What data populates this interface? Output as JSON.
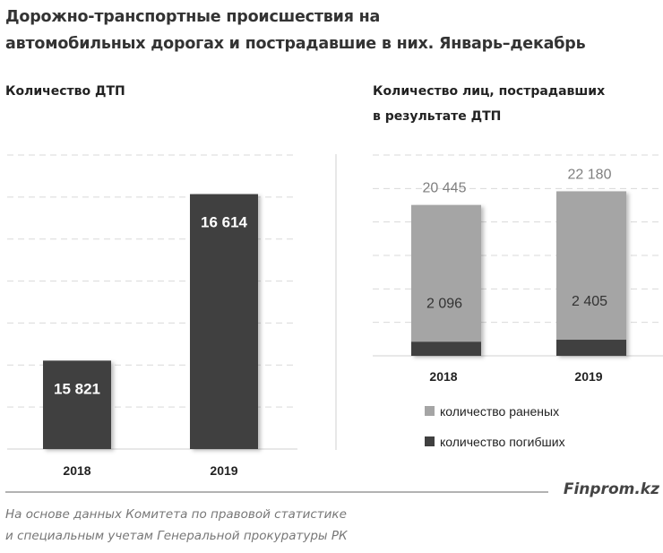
{
  "title_line1": "Дорожно-транспортные происшествия на",
  "title_line2": "автомобильных дорогах и пострадавшие в них. Январь–декабрь",
  "brand": "Finprom.kz",
  "footer_line1": "На основе данных Комитета по правовой статистике",
  "footer_line2": "и специальным учетам Генеральной прокуратуры РК",
  "colors": {
    "dark": "#404040",
    "grey": "#a5a5a5",
    "grid": "#d9d9d9"
  },
  "chart_data": [
    {
      "type": "bar",
      "title": "Количество  ДТП",
      "categories": [
        "2018",
        "2019"
      ],
      "values": [
        15821,
        16614
      ],
      "value_labels": [
        "15 821",
        "16 614"
      ],
      "ylim": [
        15400,
        16800
      ],
      "grid": true
    },
    {
      "type": "bar",
      "stacked": true,
      "title_line1": "Количество  лиц, пострадавших",
      "title_line2": "в результате ДТП",
      "categories": [
        "2018",
        "2019"
      ],
      "series": [
        {
          "name": "количество погибших",
          "values": [
            2096,
            2405
          ],
          "value_labels": [
            "2 096",
            "2 405"
          ],
          "color": "#404040"
        },
        {
          "name": "количество раненых",
          "values": [
            20445,
            22180
          ],
          "value_labels": [
            "20 445",
            "22 180"
          ],
          "color": "#a5a5a5"
        }
      ],
      "ylim": [
        0,
        30000
      ],
      "grid": true,
      "legend": "bottom"
    }
  ]
}
